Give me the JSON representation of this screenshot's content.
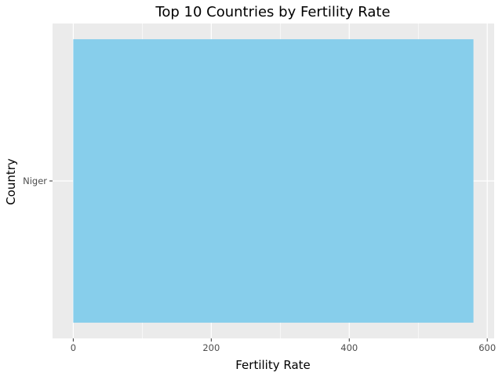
{
  "chart_data": {
    "type": "bar",
    "orientation": "horizontal",
    "title": "Top 10 Countries by Fertility Rate",
    "xlabel": "Fertility Rate",
    "ylabel": "Country",
    "categories": [
      "Niger"
    ],
    "values": [
      580
    ],
    "xlim": [
      -30,
      610
    ],
    "x_ticks": [
      0,
      200,
      400,
      600
    ],
    "x_tick_labels": [
      "0",
      "200",
      "400",
      "600"
    ],
    "grid": true,
    "legend": "none"
  },
  "colors": {
    "bar": "#87CEEB",
    "panel": "#EBEBEB",
    "grid_major": "#FFFFFF",
    "tick_text": "#4D4D4D"
  }
}
